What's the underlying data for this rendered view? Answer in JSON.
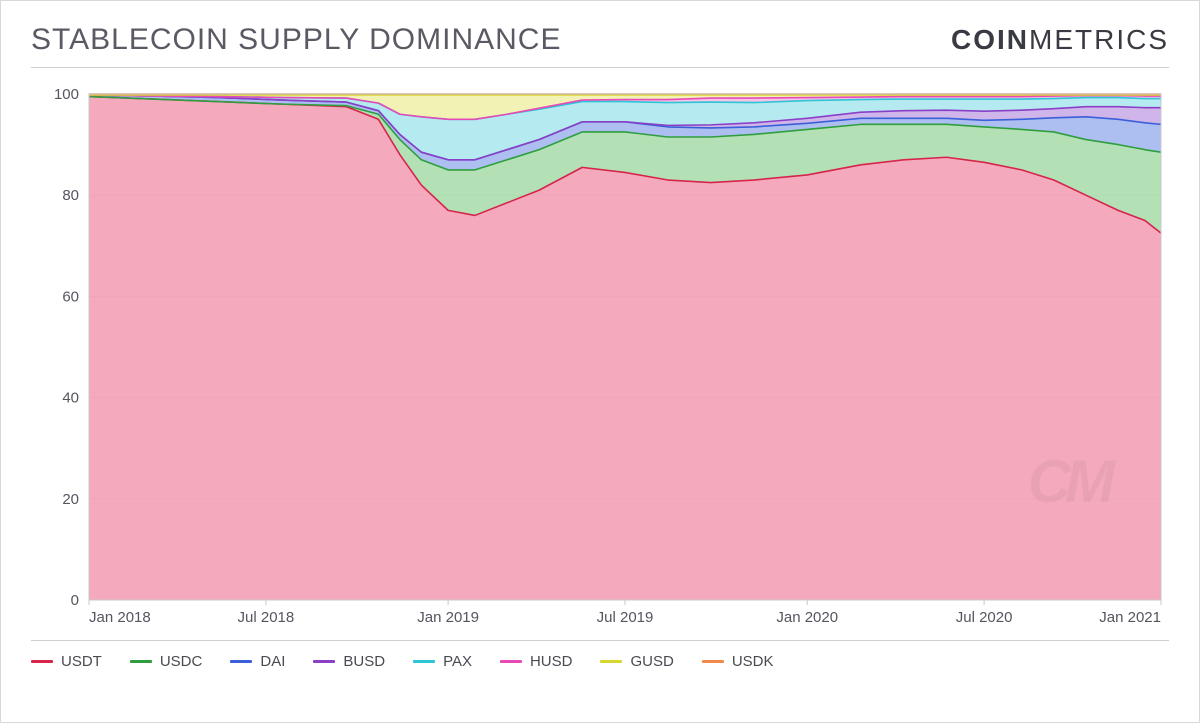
{
  "title": "STABLECOIN SUPPLY DOMINANCE",
  "brand_bold": "COIN",
  "brand_light": "METRICS",
  "watermark": "CM",
  "chart": {
    "type": "stacked-area",
    "background_color": "#ffffff",
    "plot_border_color": "#c8c8cc",
    "grid_color": "#e4e4e8",
    "axis_label_color": "#555560",
    "axis_fontsize": 15,
    "y": {
      "min": 0,
      "max": 100,
      "ticks": [
        0,
        20,
        40,
        60,
        80,
        100
      ]
    },
    "x": {
      "ticks": [
        {
          "t": 0.0,
          "label": "Jan 2018"
        },
        {
          "t": 0.165,
          "label": "Jul 2018"
        },
        {
          "t": 0.335,
          "label": "Jan 2019"
        },
        {
          "t": 0.5,
          "label": "Jul 2019"
        },
        {
          "t": 0.67,
          "label": "Jan 2020"
        },
        {
          "t": 0.835,
          "label": "Jul 2020"
        },
        {
          "t": 1.0,
          "label": "Jan 2021"
        }
      ]
    },
    "series": [
      {
        "key": "USDT",
        "name": "USDT",
        "stroke": "#d6244b",
        "fill": "#f29bb0",
        "fill_opacity": 0.85,
        "line_width": 1.6
      },
      {
        "key": "USDC",
        "name": "USDC",
        "stroke": "#2f9e3f",
        "fill": "#a6dca8",
        "fill_opacity": 0.85,
        "line_width": 1.6
      },
      {
        "key": "DAI",
        "name": "DAI",
        "stroke": "#3a5fd8",
        "fill": "#9fb4ef",
        "fill_opacity": 0.85,
        "line_width": 1.6
      },
      {
        "key": "BUSD",
        "name": "BUSD",
        "stroke": "#8a3fc6",
        "fill": "#c8a8e8",
        "fill_opacity": 0.85,
        "line_width": 1.6
      },
      {
        "key": "PAX",
        "name": "PAX",
        "stroke": "#2fc4d6",
        "fill": "#a8e6ee",
        "fill_opacity": 0.85,
        "line_width": 1.6
      },
      {
        "key": "HUSD",
        "name": "HUSD",
        "stroke": "#e64ab8",
        "fill": "#f6b8e4",
        "fill_opacity": 0.85,
        "line_width": 1.6
      },
      {
        "key": "GUSD",
        "name": "GUSD",
        "stroke": "#d6d82f",
        "fill": "#f0f0a8",
        "fill_opacity": 0.85,
        "line_width": 1.6
      },
      {
        "key": "USDK",
        "name": "USDK",
        "stroke": "#f08a4a",
        "fill": "#fbd0b4",
        "fill_opacity": 0.85,
        "line_width": 1.6
      }
    ],
    "samples": [
      {
        "t": 0.0,
        "USDT": 99.5,
        "USDC": 0.0,
        "DAI": 0.3,
        "BUSD": 0.0,
        "PAX": 0.0,
        "HUSD": 0.0,
        "GUSD": 0.0,
        "USDK": 0.2
      },
      {
        "t": 0.06,
        "USDT": 99.0,
        "USDC": 0.0,
        "DAI": 0.6,
        "BUSD": 0.0,
        "PAX": 0.0,
        "HUSD": 0.0,
        "GUSD": 0.2,
        "USDK": 0.2
      },
      {
        "t": 0.12,
        "USDT": 98.5,
        "USDC": 0.0,
        "DAI": 0.8,
        "BUSD": 0.0,
        "PAX": 0.2,
        "HUSD": 0.0,
        "GUSD": 0.3,
        "USDK": 0.2
      },
      {
        "t": 0.18,
        "USDT": 98.0,
        "USDC": 0.0,
        "DAI": 0.8,
        "BUSD": 0.0,
        "PAX": 0.5,
        "HUSD": 0.0,
        "GUSD": 0.5,
        "USDK": 0.2
      },
      {
        "t": 0.24,
        "USDT": 97.5,
        "USDC": 0.2,
        "DAI": 0.7,
        "BUSD": 0.0,
        "PAX": 0.8,
        "HUSD": 0.0,
        "GUSD": 0.6,
        "USDK": 0.2
      },
      {
        "t": 0.27,
        "USDT": 95.0,
        "USDC": 1.0,
        "DAI": 0.7,
        "BUSD": 0.0,
        "PAX": 1.5,
        "HUSD": 0.0,
        "GUSD": 1.6,
        "USDK": 0.2
      },
      {
        "t": 0.29,
        "USDT": 88.0,
        "USDC": 3.0,
        "DAI": 1.0,
        "BUSD": 0.0,
        "PAX": 4.0,
        "HUSD": 0.0,
        "GUSD": 3.8,
        "USDK": 0.2
      },
      {
        "t": 0.31,
        "USDT": 82.0,
        "USDC": 5.0,
        "DAI": 1.5,
        "BUSD": 0.0,
        "PAX": 7.0,
        "HUSD": 0.0,
        "GUSD": 4.3,
        "USDK": 0.2
      },
      {
        "t": 0.335,
        "USDT": 77.0,
        "USDC": 8.0,
        "DAI": 2.0,
        "BUSD": 0.0,
        "PAX": 8.0,
        "HUSD": 0.0,
        "GUSD": 4.8,
        "USDK": 0.2
      },
      {
        "t": 0.36,
        "USDT": 76.0,
        "USDC": 9.0,
        "DAI": 2.0,
        "BUSD": 0.0,
        "PAX": 8.0,
        "HUSD": 0.0,
        "GUSD": 4.8,
        "USDK": 0.2
      },
      {
        "t": 0.39,
        "USDT": 78.5,
        "USDC": 8.5,
        "DAI": 2.0,
        "BUSD": 0.0,
        "PAX": 7.0,
        "HUSD": 0.0,
        "GUSD": 3.8,
        "USDK": 0.2
      },
      {
        "t": 0.42,
        "USDT": 81.0,
        "USDC": 8.0,
        "DAI": 2.0,
        "BUSD": 0.0,
        "PAX": 6.0,
        "HUSD": 0.2,
        "GUSD": 2.6,
        "USDK": 0.2
      },
      {
        "t": 0.46,
        "USDT": 85.5,
        "USDC": 7.0,
        "DAI": 2.0,
        "BUSD": 0.0,
        "PAX": 4.0,
        "HUSD": 0.3,
        "GUSD": 1.0,
        "USDK": 0.2
      },
      {
        "t": 0.5,
        "USDT": 84.5,
        "USDC": 8.0,
        "DAI": 2.0,
        "BUSD": 0.0,
        "PAX": 4.0,
        "HUSD": 0.4,
        "GUSD": 0.9,
        "USDK": 0.2
      },
      {
        "t": 0.54,
        "USDT": 83.0,
        "USDC": 8.5,
        "DAI": 2.0,
        "BUSD": 0.3,
        "PAX": 4.5,
        "HUSD": 0.6,
        "GUSD": 0.9,
        "USDK": 0.2
      },
      {
        "t": 0.58,
        "USDT": 82.5,
        "USDC": 9.0,
        "DAI": 1.8,
        "BUSD": 0.6,
        "PAX": 4.5,
        "HUSD": 0.8,
        "GUSD": 0.6,
        "USDK": 0.2
      },
      {
        "t": 0.62,
        "USDT": 83.0,
        "USDC": 9.0,
        "DAI": 1.5,
        "BUSD": 0.8,
        "PAX": 4.0,
        "HUSD": 0.9,
        "GUSD": 0.6,
        "USDK": 0.2
      },
      {
        "t": 0.67,
        "USDT": 84.0,
        "USDC": 9.0,
        "DAI": 1.2,
        "BUSD": 1.0,
        "PAX": 3.5,
        "HUSD": 0.6,
        "GUSD": 0.5,
        "USDK": 0.2
      },
      {
        "t": 0.72,
        "USDT": 86.0,
        "USDC": 8.0,
        "DAI": 1.2,
        "BUSD": 1.2,
        "PAX": 2.5,
        "HUSD": 0.5,
        "GUSD": 0.4,
        "USDK": 0.2
      },
      {
        "t": 0.76,
        "USDT": 87.0,
        "USDC": 7.0,
        "DAI": 1.2,
        "BUSD": 1.5,
        "PAX": 2.3,
        "HUSD": 0.5,
        "GUSD": 0.3,
        "USDK": 0.2
      },
      {
        "t": 0.8,
        "USDT": 87.5,
        "USDC": 6.5,
        "DAI": 1.2,
        "BUSD": 1.6,
        "PAX": 2.2,
        "HUSD": 0.5,
        "GUSD": 0.3,
        "USDK": 0.2
      },
      {
        "t": 0.835,
        "USDT": 86.5,
        "USDC": 7.0,
        "DAI": 1.3,
        "BUSD": 1.8,
        "PAX": 2.4,
        "HUSD": 0.5,
        "GUSD": 0.3,
        "USDK": 0.2
      },
      {
        "t": 0.87,
        "USDT": 85.0,
        "USDC": 8.0,
        "DAI": 2.0,
        "BUSD": 1.8,
        "PAX": 2.2,
        "HUSD": 0.5,
        "GUSD": 0.3,
        "USDK": 0.2
      },
      {
        "t": 0.9,
        "USDT": 83.0,
        "USDC": 9.5,
        "DAI": 2.8,
        "BUSD": 1.8,
        "PAX": 2.0,
        "HUSD": 0.5,
        "GUSD": 0.2,
        "USDK": 0.2
      },
      {
        "t": 0.93,
        "USDT": 80.0,
        "USDC": 11.0,
        "DAI": 4.5,
        "BUSD": 2.0,
        "PAX": 1.8,
        "HUSD": 0.4,
        "GUSD": 0.1,
        "USDK": 0.2
      },
      {
        "t": 0.96,
        "USDT": 77.0,
        "USDC": 13.0,
        "DAI": 5.0,
        "BUSD": 2.5,
        "PAX": 1.8,
        "HUSD": 0.4,
        "GUSD": 0.1,
        "USDK": 0.2
      },
      {
        "t": 0.985,
        "USDT": 75.0,
        "USDC": 14.0,
        "DAI": 5.3,
        "BUSD": 3.0,
        "PAX": 1.8,
        "HUSD": 0.5,
        "GUSD": 0.2,
        "USDK": 0.2
      },
      {
        "t": 1.0,
        "USDT": 72.5,
        "USDC": 16.0,
        "DAI": 5.5,
        "BUSD": 3.3,
        "PAX": 1.8,
        "HUSD": 0.5,
        "GUSD": 0.2,
        "USDK": 0.2
      }
    ]
  }
}
